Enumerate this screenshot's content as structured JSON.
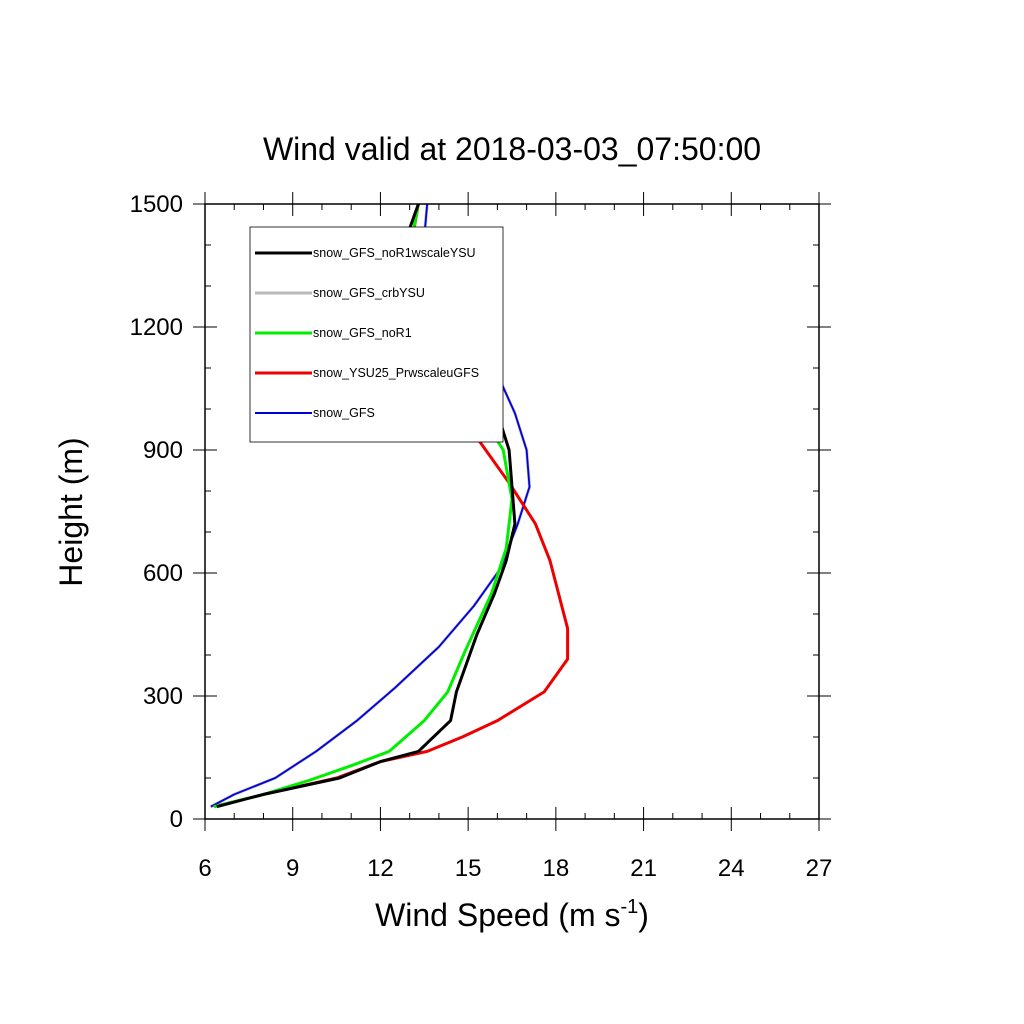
{
  "chart_data": {
    "type": "line",
    "title": "Wind valid at 2018-03-03_07:50:00",
    "xlabel_main": "Wind Speed (m s",
    "xlabel_sup": "-1",
    "xlabel_close": ")",
    "ylabel": "Height (m)",
    "xlim": [
      6,
      27
    ],
    "ylim": [
      0,
      1500
    ],
    "xticks": [
      "6",
      "9",
      "12",
      "15",
      "18",
      "21",
      "24",
      "27"
    ],
    "yticks": [
      "0",
      "300",
      "600",
      "900",
      "1200",
      "1500"
    ],
    "legend_position": "top-left",
    "series": [
      {
        "name": "snow_GFS_noR1wscaleYSU",
        "color": "#000000",
        "x": [
          6.4,
          8.0,
          10.6,
          12.0,
          13.3,
          14.4,
          14.6,
          15.3,
          15.9,
          16.3,
          16.6,
          16.4,
          16.0,
          15.1,
          14.1,
          13.2,
          12.9,
          12.7,
          12.9,
          13.3
        ],
        "y": [
          30,
          60,
          100,
          140,
          165,
          240,
          310,
          450,
          550,
          630,
          720,
          900,
          990,
          1080,
          1150,
          1220,
          1280,
          1350,
          1420,
          1500
        ]
      },
      {
        "name": "snow_GFS_crbYSU",
        "color": "#bbbbbb",
        "x": [
          6.2,
          7.0,
          8.4,
          9.8,
          11.2,
          12.5,
          14.0,
          15.2,
          16.1,
          16.7,
          17.1,
          17.0,
          16.6,
          15.9,
          14.8,
          14.0,
          13.6,
          13.5,
          13.6
        ],
        "y": [
          30,
          60,
          100,
          165,
          240,
          320,
          420,
          520,
          610,
          720,
          810,
          900,
          990,
          1100,
          1220,
          1290,
          1350,
          1420,
          1500
        ]
      },
      {
        "name": "snow_GFS_noR1",
        "color": "#00ee00",
        "x": [
          6.3,
          8.0,
          9.6,
          11.0,
          12.3,
          13.5,
          14.3,
          14.9,
          15.8,
          16.3,
          16.5,
          16.2,
          15.4,
          14.5,
          13.5,
          13.0,
          12.8,
          12.9,
          13.3
        ],
        "y": [
          30,
          60,
          95,
          130,
          165,
          240,
          310,
          410,
          550,
          660,
          780,
          900,
          990,
          1070,
          1160,
          1220,
          1280,
          1350,
          1500
        ]
      },
      {
        "name": "snow_YSU25_PrwscaleuGFS",
        "color": "#ee0000",
        "x": [
          6.3,
          8.0,
          10.5,
          12.0,
          13.6,
          14.8,
          16.0,
          17.6,
          18.4,
          18.4,
          17.8,
          17.3,
          16.4,
          15.4,
          14.5,
          13.6,
          13.0,
          12.9,
          13.0,
          13.3
        ],
        "y": [
          30,
          60,
          100,
          140,
          165,
          200,
          240,
          310,
          390,
          465,
          630,
          720,
          820,
          920,
          1030,
          1150,
          1220,
          1290,
          1380,
          1500
        ]
      },
      {
        "name": "snow_GFS",
        "color": "#0000dd",
        "x": [
          6.2,
          7.0,
          8.4,
          9.8,
          11.2,
          12.5,
          14.0,
          15.2,
          16.1,
          16.7,
          17.1,
          17.0,
          16.6,
          15.9,
          14.8,
          14.0,
          13.6,
          13.5,
          13.6
        ],
        "y": [
          30,
          60,
          100,
          165,
          240,
          320,
          420,
          520,
          610,
          720,
          810,
          900,
          990,
          1100,
          1220,
          1290,
          1350,
          1420,
          1500
        ]
      }
    ]
  }
}
